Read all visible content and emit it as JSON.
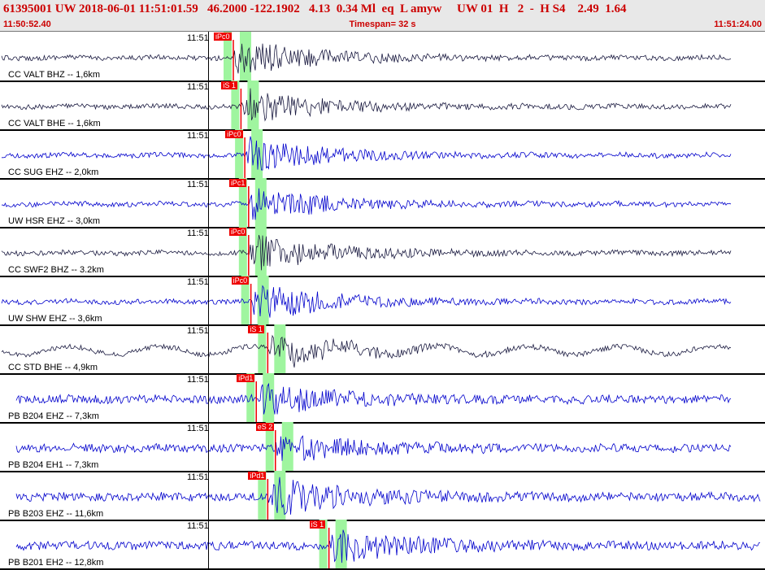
{
  "header": {
    "title": "61395001 UW 2018-06-01 11:51:01.59   46.2000 -122.1902   4.13  0.34 Ml  eq  L amyw     UW 01  H   2  -  H S4    2.49  1.64",
    "start_time": "11:50:52.40",
    "timespan": "Timespan=  32 s",
    "end_time": "11:51:24.00"
  },
  "colors": {
    "black_trace": "#1a1a40",
    "blue_trace": "#0000cc",
    "pick": "#ee0000",
    "window": "#9ff59f"
  },
  "channels": [
    {
      "label": "CC VALT BHZ -- 1,6km",
      "time": "11:51",
      "pick": "iPc0",
      "color": "black",
      "onset": 0.305,
      "amp": 1.0
    },
    {
      "label": "CC VALT BHE -- 1,6km",
      "time": "11:51",
      "pick": "iS 1",
      "color": "black",
      "onset": 0.315,
      "amp": 0.9
    },
    {
      "label": "CC SUG EHZ -- 2,0km",
      "time": "11:51",
      "pick": "iPc0",
      "color": "blue",
      "onset": 0.32,
      "amp": 0.9
    },
    {
      "label": "UW HSR EHZ -- 3,0km",
      "time": "11:51",
      "pick": "iPc1",
      "color": "blue",
      "onset": 0.325,
      "amp": 0.9
    },
    {
      "label": "CC SWF2 BHZ -- 3.2km",
      "time": "11:51",
      "pick": "iPc0",
      "color": "black",
      "onset": 0.325,
      "amp": 1.0
    },
    {
      "label": "UW SHW EHZ -- 3,6km",
      "time": "11:51",
      "pick": "iPc0",
      "color": "blue",
      "onset": 0.328,
      "amp": 1.0
    },
    {
      "label": "CC STD BHE -- 4,9km",
      "time": "11:51",
      "pick": "iS 1",
      "color": "black",
      "onset": 0.35,
      "amp": 0.8
    },
    {
      "label": "PB B204 EHZ -- 7,3km",
      "time": "11:51",
      "pick": "iPd1",
      "color": "blue",
      "onset": 0.335,
      "amp": 0.8
    },
    {
      "label": "PB B204 EH1 -- 7,3km",
      "time": "11:51",
      "pick": "eS 2",
      "color": "blue",
      "onset": 0.36,
      "amp": 0.7
    },
    {
      "label": "PB B203 EHZ -- 11,6km",
      "time": "11:51",
      "pick": "iPd1",
      "color": "blue",
      "onset": 0.35,
      "amp": 1.0
    },
    {
      "label": "PB B201 EH2 -- 12,8km",
      "time": "11:51",
      "pick": "iS 1",
      "color": "blue",
      "onset": 0.43,
      "amp": 0.9
    }
  ]
}
